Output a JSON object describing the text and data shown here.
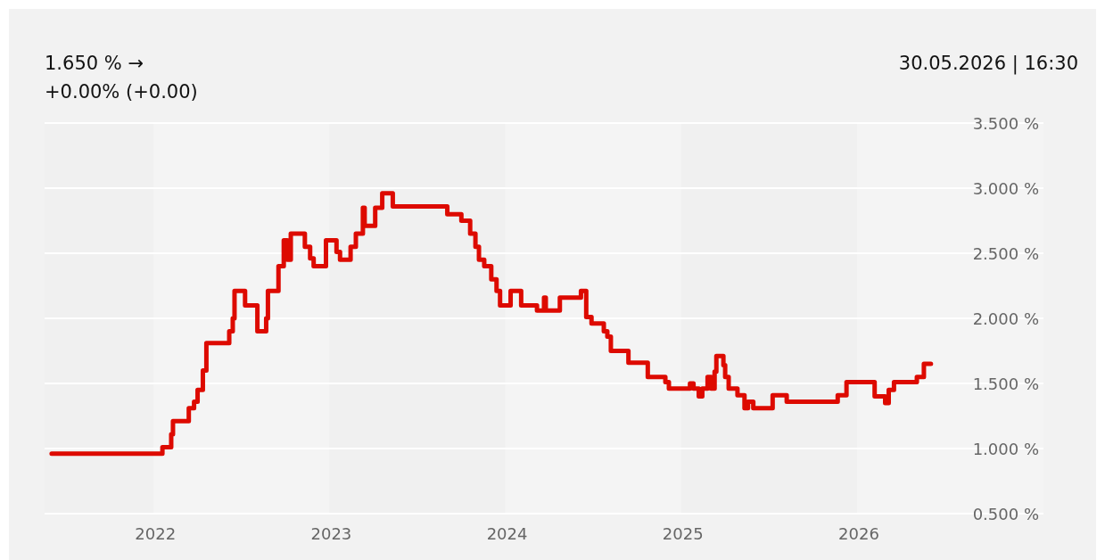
{
  "chart_data": {
    "type": "step",
    "title": "1.650 % →",
    "subtitle": "+0.00% (+0.00)",
    "annotations": [
      "30.05.2026 | 16:30"
    ],
    "xlim": [
      2021.37,
      2027.05
    ],
    "xticks": [
      2022,
      2023,
      2024,
      2025,
      2026
    ],
    "ylim": [
      0.5,
      3.5
    ],
    "yticks": [
      {
        "value": 0.5,
        "label": "0.500 %"
      },
      {
        "value": 1,
        "label": "1.000 %"
      },
      {
        "value": 1.5,
        "label": "1.500 %"
      },
      {
        "value": 2,
        "label": "2.000 %"
      },
      {
        "value": 2.5,
        "label": "2.500 %"
      },
      {
        "value": 3,
        "label": "3.000 %"
      },
      {
        "value": 3.5,
        "label": "3.500 %"
      }
    ],
    "grid": "y",
    "series": [
      {
        "color": "#dd0a00",
        "x": [
          2021.41,
          2022.04,
          2022.09,
          2022.1,
          2022.19,
          2022.22,
          2022.24,
          2022.27,
          2022.29,
          2022.42,
          2022.44,
          2022.45,
          2022.51,
          2022.58,
          2022.63,
          2022.64,
          2022.7,
          2022.73,
          2022.75,
          2022.77,
          2022.85,
          2022.88,
          2022.9,
          2022.97,
          2023.03,
          2023.05,
          2023.11,
          2023.14,
          2023.18,
          2023.19,
          2023.25,
          2023.29,
          2023.35,
          2023.66,
          2023.74,
          2023.79,
          2023.82,
          2023.84,
          2023.87,
          2023.91,
          2023.94,
          2023.96,
          2024.02,
          2024.08,
          2024.17,
          2024.21,
          2024.22,
          2024.3,
          2024.42,
          2024.45,
          2024.48,
          2024.55,
          2024.57,
          2024.59,
          2024.69,
          2024.8,
          2024.9,
          2024.92,
          2025.04,
          2025.06,
          2025.09,
          2025.11,
          2025.14,
          2025.16,
          2025.18,
          2025.19,
          2025.23,
          2025.24,
          2025.26,
          2025.31,
          2025.35,
          2025.37,
          2025.4,
          2025.51,
          2025.59,
          2025.88,
          2025.93,
          2026.09,
          2026.15,
          2026.17,
          2026.2,
          2026.33,
          2026.37,
          2026.41
        ],
        "values": [
          0.96,
          1.01,
          1.11,
          1.21,
          1.31,
          1.36,
          1.45,
          1.6,
          1.81,
          1.9,
          2.0,
          2.21,
          2.1,
          1.9,
          2.0,
          2.21,
          2.4,
          2.6,
          2.45,
          2.65,
          2.55,
          2.46,
          2.4,
          2.6,
          2.51,
          2.45,
          2.55,
          2.65,
          2.85,
          2.71,
          2.85,
          2.96,
          2.86,
          2.8,
          2.75,
          2.65,
          2.55,
          2.45,
          2.4,
          2.3,
          2.21,
          2.1,
          2.21,
          2.1,
          2.06,
          2.16,
          2.06,
          2.16,
          2.21,
          2.01,
          1.96,
          1.9,
          1.86,
          1.75,
          1.66,
          1.55,
          1.51,
          1.46,
          1.5,
          1.46,
          1.4,
          1.46,
          1.55,
          1.46,
          1.59,
          1.71,
          1.64,
          1.55,
          1.46,
          1.41,
          1.31,
          1.36,
          1.31,
          1.41,
          1.36,
          1.41,
          1.51,
          1.4,
          1.35,
          1.45,
          1.51,
          1.55,
          1.65,
          1.65
        ]
      }
    ]
  }
}
